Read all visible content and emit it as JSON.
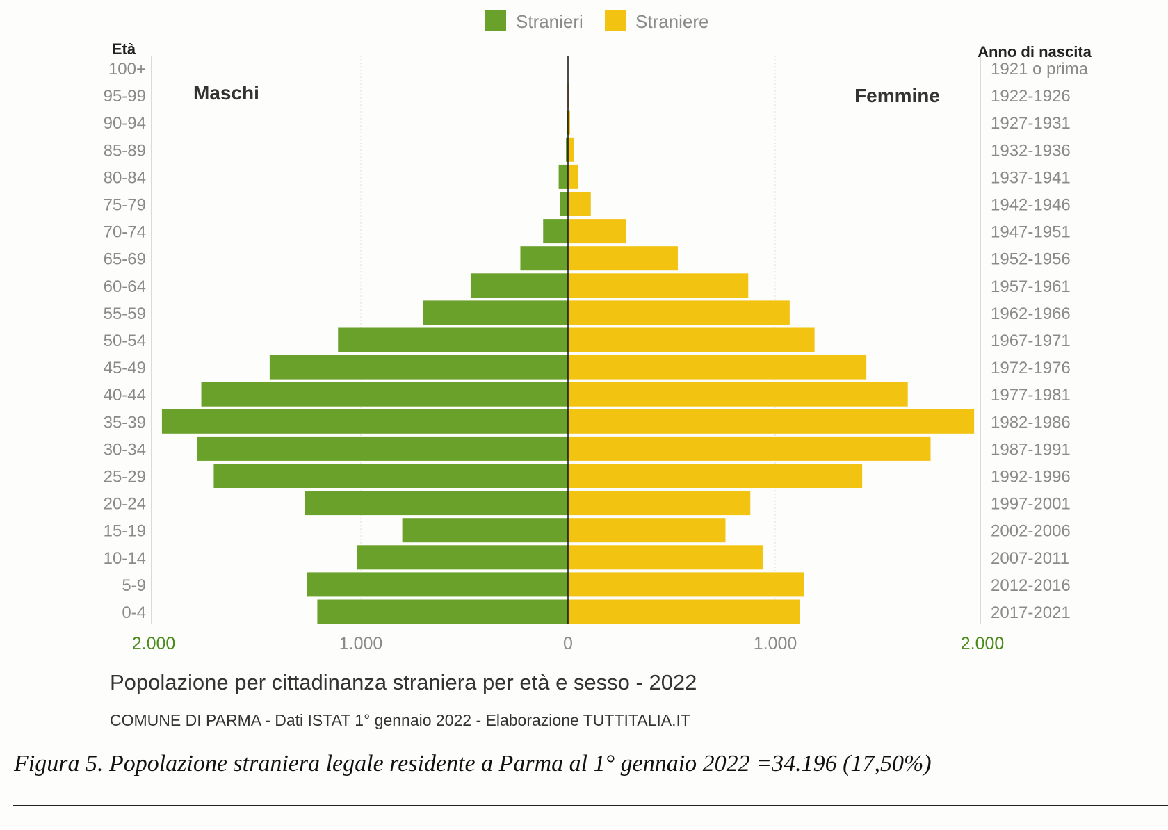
{
  "chart_data": {
    "type": "bar",
    "orientation": "horizontal-pyramid",
    "title": "Popolazione per cittadinanza straniera per età e sesso - 2022",
    "subtitle": "COMUNE DI PARMA - Dati ISTAT 1° gennaio 2022 - Elaborazione TUTTITALIA.IT",
    "left_axis_label": "Età",
    "right_axis_label": "Anno di nascita",
    "left_side_label": "Maschi",
    "right_side_label": "Femmine",
    "categories": [
      "0-4",
      "5-9",
      "10-14",
      "15-19",
      "20-24",
      "25-29",
      "30-34",
      "35-39",
      "40-44",
      "45-49",
      "50-54",
      "55-59",
      "60-64",
      "65-69",
      "70-74",
      "75-79",
      "80-84",
      "85-89",
      "90-94",
      "95-99",
      "100+"
    ],
    "birth_years": [
      "2017-2021",
      "2012-2016",
      "2007-2011",
      "2002-2006",
      "1997-2001",
      "1992-1996",
      "1987-1991",
      "1982-1986",
      "1977-1981",
      "1972-1976",
      "1967-1971",
      "1962-1966",
      "1957-1961",
      "1952-1956",
      "1947-1951",
      "1942-1946",
      "1937-1941",
      "1932-1936",
      "1927-1931",
      "1922-1926",
      "1921 o prima"
    ],
    "series": [
      {
        "name": "Stranieri",
        "color": "#6aa12a",
        "values": [
          1210,
          1260,
          1020,
          800,
          1270,
          1710,
          1790,
          1960,
          1770,
          1440,
          1110,
          700,
          470,
          230,
          120,
          40,
          45,
          10,
          5,
          2,
          0
        ]
      },
      {
        "name": "Straniere",
        "color": "#f3c312",
        "values": [
          1120,
          1140,
          940,
          760,
          880,
          1420,
          1750,
          1960,
          1640,
          1440,
          1190,
          1070,
          870,
          530,
          280,
          110,
          50,
          30,
          10,
          3,
          1
        ]
      }
    ],
    "x_ticks": [
      "2.000",
      "1.000",
      "0",
      "1.000",
      "2.000"
    ],
    "xlim": [
      -2000,
      2000
    ],
    "grid": true,
    "legend_position": "top-center"
  },
  "caption": "Figura 5. Popolazione straniera legale residente a Parma al 1° gennaio 2022 =34.196 (17,50%)"
}
